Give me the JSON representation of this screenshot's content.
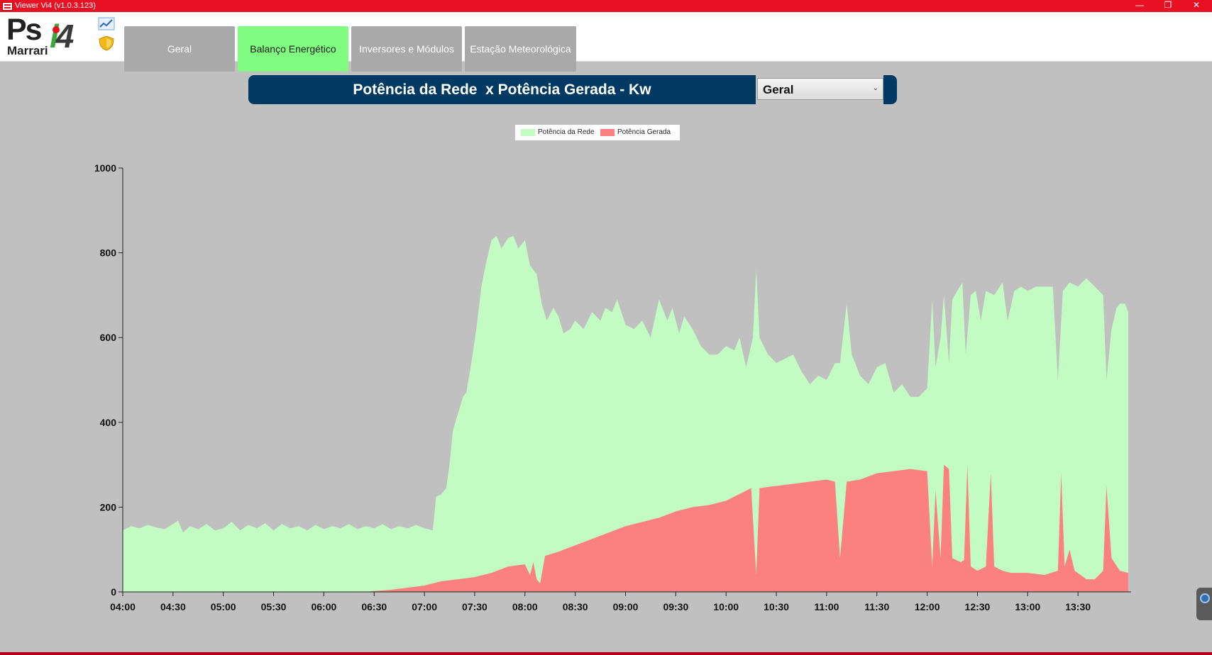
{
  "window": {
    "title": "Viewer Vi4 (v1.0.3.123)",
    "minimize": "—",
    "maximize": "❐",
    "close": "✕"
  },
  "logo": {
    "ps": "Ps",
    "brand": "Marrari",
    "i": "i",
    "four": "4"
  },
  "header_icons": [
    "trend-chart-icon",
    "shield-icon"
  ],
  "tabs": [
    {
      "label": "Geral",
      "active": false
    },
    {
      "label": "Balanço Energético",
      "active": true
    },
    {
      "label": "Inversores e Módulos",
      "active": false
    },
    {
      "label": "Estação Meteorológica",
      "active": false
    }
  ],
  "panel": {
    "title": "Potência da Rede  x Potência Gerada - Kw",
    "select_value": "Geral"
  },
  "chart_data": {
    "type": "area",
    "title": "",
    "xlabel": "",
    "ylabel": "",
    "ylim": [
      0,
      1000
    ],
    "yticks": [
      0,
      200,
      400,
      600,
      800,
      1000
    ],
    "xlim": [
      "04:00",
      "14:00"
    ],
    "xticks": [
      "04:00",
      "04:30",
      "05:00",
      "05:30",
      "06:00",
      "06:30",
      "07:00",
      "07:30",
      "08:00",
      "08:30",
      "09:00",
      "09:30",
      "10:00",
      "10:30",
      "11:00",
      "11:30",
      "12:00",
      "12:30",
      "13:00",
      "13:30"
    ],
    "legend_position": "top-center",
    "grid": false,
    "series": [
      {
        "name": "Potência da Rede",
        "color": "#c2fcc2",
        "points": [
          [
            "04:00",
            145
          ],
          [
            "04:05",
            155
          ],
          [
            "04:10",
            150
          ],
          [
            "04:15",
            158
          ],
          [
            "04:20",
            152
          ],
          [
            "04:25",
            148
          ],
          [
            "04:30",
            160
          ],
          [
            "04:33",
            168
          ],
          [
            "04:36",
            140
          ],
          [
            "04:40",
            155
          ],
          [
            "04:45",
            148
          ],
          [
            "04:50",
            160
          ],
          [
            "04:55",
            145
          ],
          [
            "05:00",
            150
          ],
          [
            "05:05",
            165
          ],
          [
            "05:10",
            145
          ],
          [
            "05:15",
            158
          ],
          [
            "05:20",
            150
          ],
          [
            "05:25",
            162
          ],
          [
            "05:30",
            145
          ],
          [
            "05:35",
            160
          ],
          [
            "05:40",
            150
          ],
          [
            "05:45",
            155
          ],
          [
            "05:50",
            145
          ],
          [
            "05:55",
            158
          ],
          [
            "06:00",
            148
          ],
          [
            "06:05",
            155
          ],
          [
            "06:10",
            150
          ],
          [
            "06:15",
            160
          ],
          [
            "06:20",
            148
          ],
          [
            "06:25",
            155
          ],
          [
            "06:30",
            150
          ],
          [
            "06:35",
            160
          ],
          [
            "06:40",
            148
          ],
          [
            "06:45",
            155
          ],
          [
            "06:50",
            150
          ],
          [
            "06:55",
            158
          ],
          [
            "07:00",
            150
          ],
          [
            "07:05",
            145
          ],
          [
            "07:07",
            225
          ],
          [
            "07:10",
            230
          ],
          [
            "07:13",
            245
          ],
          [
            "07:15",
            300
          ],
          [
            "07:17",
            380
          ],
          [
            "07:20",
            420
          ],
          [
            "07:23",
            460
          ],
          [
            "07:25",
            470
          ],
          [
            "07:28",
            540
          ],
          [
            "07:31",
            620
          ],
          [
            "07:34",
            720
          ],
          [
            "07:37",
            780
          ],
          [
            "07:40",
            830
          ],
          [
            "07:43",
            840
          ],
          [
            "07:46",
            810
          ],
          [
            "07:50",
            835
          ],
          [
            "07:53",
            840
          ],
          [
            "07:56",
            810
          ],
          [
            "08:00",
            830
          ],
          [
            "08:03",
            770
          ],
          [
            "08:07",
            750
          ],
          [
            "08:10",
            680
          ],
          [
            "08:13",
            640
          ],
          [
            "08:17",
            670
          ],
          [
            "08:20",
            650
          ],
          [
            "08:23",
            610
          ],
          [
            "08:27",
            620
          ],
          [
            "08:30",
            640
          ],
          [
            "08:35",
            620
          ],
          [
            "08:40",
            660
          ],
          [
            "08:45",
            640
          ],
          [
            "08:48",
            670
          ],
          [
            "08:52",
            660
          ],
          [
            "08:55",
            690
          ],
          [
            "09:00",
            630
          ],
          [
            "09:05",
            620
          ],
          [
            "09:10",
            640
          ],
          [
            "09:15",
            600
          ],
          [
            "09:20",
            690
          ],
          [
            "09:25",
            640
          ],
          [
            "09:28",
            670
          ],
          [
            "09:32",
            610
          ],
          [
            "09:35",
            650
          ],
          [
            "09:40",
            620
          ],
          [
            "09:45",
            580
          ],
          [
            "09:50",
            560
          ],
          [
            "09:55",
            560
          ],
          [
            "10:00",
            580
          ],
          [
            "10:05",
            570
          ],
          [
            "10:08",
            600
          ],
          [
            "10:12",
            530
          ],
          [
            "10:16",
            600
          ],
          [
            "10:18",
            760
          ],
          [
            "10:20",
            600
          ],
          [
            "10:25",
            560
          ],
          [
            "10:30",
            540
          ],
          [
            "10:35",
            550
          ],
          [
            "10:40",
            560
          ],
          [
            "10:45",
            520
          ],
          [
            "10:50",
            490
          ],
          [
            "10:55",
            510
          ],
          [
            "11:00",
            500
          ],
          [
            "11:05",
            540
          ],
          [
            "11:08",
            540
          ],
          [
            "11:12",
            680
          ],
          [
            "11:15",
            560
          ],
          [
            "11:20",
            510
          ],
          [
            "11:25",
            490
          ],
          [
            "11:30",
            530
          ],
          [
            "11:35",
            540
          ],
          [
            "11:40",
            470
          ],
          [
            "11:45",
            490
          ],
          [
            "11:50",
            460
          ],
          [
            "11:55",
            460
          ],
          [
            "12:00",
            480
          ],
          [
            "12:03",
            690
          ],
          [
            "12:05",
            530
          ],
          [
            "12:08",
            600
          ],
          [
            "12:10",
            700
          ],
          [
            "12:13",
            540
          ],
          [
            "12:15",
            690
          ],
          [
            "12:18",
            710
          ],
          [
            "12:21",
            730
          ],
          [
            "12:23",
            560
          ],
          [
            "12:26",
            700
          ],
          [
            "12:29",
            710
          ],
          [
            "12:32",
            640
          ],
          [
            "12:35",
            710
          ],
          [
            "12:40",
            700
          ],
          [
            "12:45",
            730
          ],
          [
            "12:48",
            640
          ],
          [
            "12:52",
            710
          ],
          [
            "12:56",
            720
          ],
          [
            "13:00",
            710
          ],
          [
            "13:05",
            720
          ],
          [
            "13:10",
            720
          ],
          [
            "13:15",
            720
          ],
          [
            "13:18",
            500
          ],
          [
            "13:21",
            710
          ],
          [
            "13:25",
            730
          ],
          [
            "13:30",
            720
          ],
          [
            "13:35",
            740
          ],
          [
            "13:40",
            720
          ],
          [
            "13:45",
            700
          ],
          [
            "13:47",
            500
          ],
          [
            "13:50",
            620
          ],
          [
            "13:53",
            670
          ],
          [
            "13:55",
            680
          ],
          [
            "13:58",
            680
          ],
          [
            "14:00",
            660
          ]
        ]
      },
      {
        "name": "Potência Gerada",
        "color": "#fb8080",
        "points": [
          [
            "04:00",
            0
          ],
          [
            "06:25",
            0
          ],
          [
            "06:30",
            2
          ],
          [
            "06:40",
            5
          ],
          [
            "06:50",
            10
          ],
          [
            "07:00",
            15
          ],
          [
            "07:10",
            25
          ],
          [
            "07:20",
            30
          ],
          [
            "07:30",
            35
          ],
          [
            "07:40",
            45
          ],
          [
            "07:50",
            60
          ],
          [
            "08:00",
            65
          ],
          [
            "08:03",
            40
          ],
          [
            "08:05",
            70
          ],
          [
            "08:07",
            30
          ],
          [
            "08:09",
            20
          ],
          [
            "08:12",
            85
          ],
          [
            "08:20",
            95
          ],
          [
            "08:30",
            110
          ],
          [
            "08:40",
            125
          ],
          [
            "08:50",
            140
          ],
          [
            "09:00",
            155
          ],
          [
            "09:10",
            165
          ],
          [
            "09:20",
            175
          ],
          [
            "09:30",
            190
          ],
          [
            "09:40",
            200
          ],
          [
            "09:50",
            205
          ],
          [
            "10:00",
            215
          ],
          [
            "10:10",
            235
          ],
          [
            "10:15",
            245
          ],
          [
            "10:18",
            40
          ],
          [
            "10:20",
            245
          ],
          [
            "10:30",
            250
          ],
          [
            "10:40",
            255
          ],
          [
            "10:50",
            260
          ],
          [
            "11:00",
            265
          ],
          [
            "11:05",
            260
          ],
          [
            "11:08",
            80
          ],
          [
            "11:12",
            260
          ],
          [
            "11:20",
            265
          ],
          [
            "11:30",
            280
          ],
          [
            "11:40",
            285
          ],
          [
            "11:50",
            290
          ],
          [
            "12:00",
            285
          ],
          [
            "12:03",
            60
          ],
          [
            "12:05",
            240
          ],
          [
            "12:08",
            80
          ],
          [
            "12:10",
            300
          ],
          [
            "12:13",
            290
          ],
          [
            "12:15",
            80
          ],
          [
            "12:20",
            70
          ],
          [
            "12:22",
            75
          ],
          [
            "12:24",
            300
          ],
          [
            "12:26",
            60
          ],
          [
            "12:30",
            50
          ],
          [
            "12:35",
            60
          ],
          [
            "12:38",
            280
          ],
          [
            "12:40",
            60
          ],
          [
            "12:45",
            50
          ],
          [
            "12:50",
            45
          ],
          [
            "13:00",
            45
          ],
          [
            "13:10",
            40
          ],
          [
            "13:18",
            50
          ],
          [
            "13:20",
            280
          ],
          [
            "13:22",
            60
          ],
          [
            "13:25",
            100
          ],
          [
            "13:28",
            50
          ],
          [
            "13:35",
            30
          ],
          [
            "13:40",
            30
          ],
          [
            "13:45",
            50
          ],
          [
            "13:47",
            250
          ],
          [
            "13:50",
            80
          ],
          [
            "13:55",
            50
          ],
          [
            "14:00",
            45
          ]
        ]
      }
    ]
  }
}
